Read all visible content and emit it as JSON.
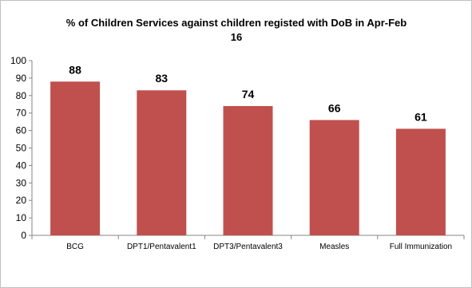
{
  "chart_data": {
    "type": "bar",
    "title_line1": "% of Children Services against  children registed with DoB in Apr-Feb",
    "title_line2": "16",
    "categories": [
      "BCG",
      "DPT1/Pentavalent1",
      "DPT3/Pentavalent3",
      "Measles",
      "Full Immunization"
    ],
    "values": [
      88,
      83,
      74,
      66,
      61
    ],
    "ylim": [
      0,
      100
    ],
    "yticks": [
      0,
      10,
      20,
      30,
      40,
      50,
      60,
      70,
      80,
      90,
      100
    ],
    "grid": false,
    "legend": "none",
    "bar_color": "#c0504d"
  }
}
